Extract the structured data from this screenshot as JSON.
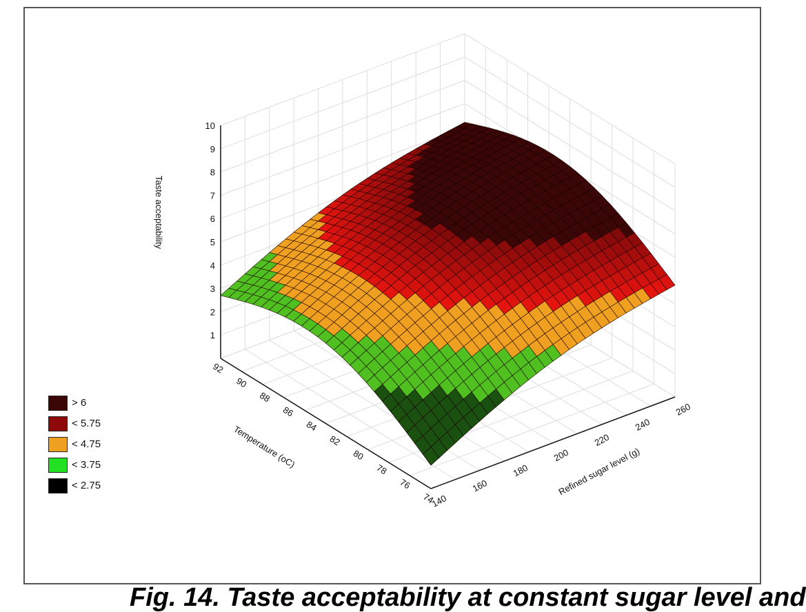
{
  "caption": "Fig. 14. Taste acceptability at constant sugar level and",
  "chart_data": {
    "type": "surface3d",
    "title": "",
    "zlabel": "Taste acceptability",
    "ylabel": "Temperature (oC)",
    "xlabel": "Refined sugar level (g)",
    "z_ticks": [
      "1",
      "2",
      "3",
      "4",
      "5",
      "6",
      "7",
      "8",
      "9",
      "10"
    ],
    "temperature_ticks": [
      "92",
      "90",
      "88",
      "86",
      "84",
      "82",
      "80",
      "78",
      "76",
      "74"
    ],
    "sugar_ticks": [
      "140",
      "160",
      "180",
      "200",
      "220",
      "240",
      "260"
    ],
    "zlim": [
      0,
      10
    ],
    "temperature_range": [
      74,
      92
    ],
    "sugar_range": [
      140,
      260
    ],
    "surface_corners": {
      "temp92_sugar140": 2.7,
      "temp74_sugar140": 1.0,
      "temp92_sugar260": 6.2,
      "temp74_sugar260": 4.8
    },
    "legend_position": "bottom-left",
    "legend": [
      {
        "label": "> 6",
        "color": "#3a0606"
      },
      {
        "label": "< 5.75",
        "color": "#8e0a0a"
      },
      {
        "label": "< 4.75",
        "color": "#f0a020"
      },
      {
        "label": "< 3.75",
        "color": "#22e022"
      },
      {
        "label": "< 2.75",
        "color": "#000000"
      }
    ],
    "grid": true
  }
}
